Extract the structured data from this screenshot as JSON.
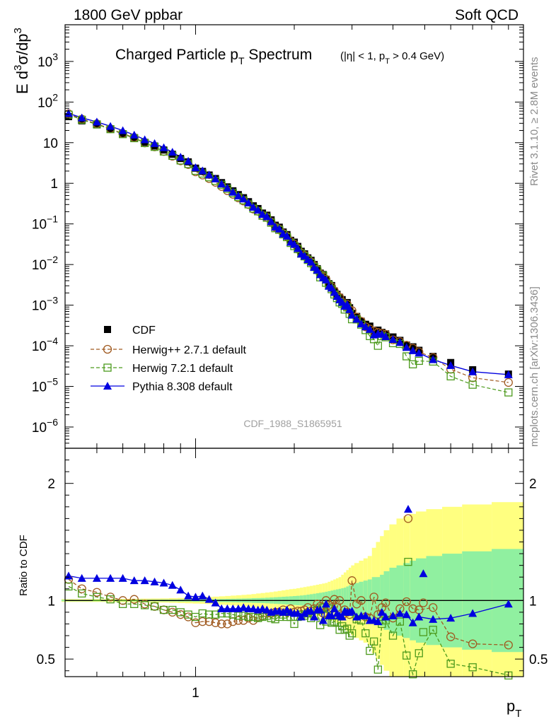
{
  "header": {
    "left": "1800 GeV ppbar",
    "right": "Soft QCD"
  },
  "side_labels": {
    "rivet": "Rivet 3.1.10, ≥ 2.8M events",
    "mcplots": "mcplots.cern.ch [arXiv:1306.3436]"
  },
  "chart_data": [
    {
      "type": "scatter",
      "panel": "main",
      "title": "Charged Particle pT Spectrum",
      "title_parts": {
        "main": "Charged Particle p",
        "sub": "T",
        "after": " Spectrum"
      },
      "subtitle": "(|η| < 1, pT > 0.4 GeV)",
      "subtitle_parts": {
        "a": "(|η| < 1, p",
        "sub": "T",
        "b": " > 0.4 GeV)"
      },
      "ylabel": "E d³σ/dp³",
      "xlabel": "pT",
      "xscale": "log",
      "yscale": "log",
      "xlim": [
        0.4,
        10
      ],
      "ylim": [
        3e-07,
        8000
      ],
      "x_tick_labels": [
        {
          "value": 1,
          "label": "1"
        }
      ],
      "y_tick_labels": [
        {
          "value": 1e-06,
          "base": "10",
          "exp": "−6"
        },
        {
          "value": 1e-05,
          "base": "10",
          "exp": "−5"
        },
        {
          "value": 0.0001,
          "base": "10",
          "exp": "−4"
        },
        {
          "value": 0.001,
          "base": "10",
          "exp": "−3"
        },
        {
          "value": 0.01,
          "base": "10",
          "exp": "−2"
        },
        {
          "value": 0.1,
          "base": "10",
          "exp": "−1"
        },
        {
          "value": 1,
          "base": "1",
          "exp": ""
        },
        {
          "value": 10,
          "base": "10",
          "exp": ""
        },
        {
          "value": 100,
          "base": "10",
          "exp": "2"
        },
        {
          "value": 1000,
          "base": "10",
          "exp": "3"
        }
      ],
      "legend_position": "bottom-left",
      "watermark": "CDF_1988_S1865951",
      "x": [
        0.41,
        0.45,
        0.5,
        0.55,
        0.6,
        0.65,
        0.7,
        0.75,
        0.8,
        0.85,
        0.9,
        0.95,
        1.0,
        1.05,
        1.1,
        1.15,
        1.2,
        1.25,
        1.3,
        1.35,
        1.4,
        1.45,
        1.5,
        1.55,
        1.6,
        1.65,
        1.7,
        1.75,
        1.8,
        1.85,
        1.9,
        1.95,
        2.0,
        2.05,
        2.1,
        2.15,
        2.2,
        2.25,
        2.3,
        2.35,
        2.4,
        2.45,
        2.5,
        2.55,
        2.6,
        2.65,
        2.7,
        2.75,
        2.8,
        2.85,
        2.9,
        2.95,
        3.0,
        3.1,
        3.2,
        3.3,
        3.4,
        3.5,
        3.6,
        3.7,
        3.8,
        4.0,
        4.2,
        4.4,
        4.6,
        4.8,
        5.3,
        6.0,
        7.0,
        9.0
      ],
      "series": [
        {
          "name": "CDF",
          "style": "data",
          "color": "#000000",
          "values": [
            43.7,
            34.5,
            27.4,
            21.3,
            16.7,
            13.3,
            10.2,
            8.27,
            6.59,
            5.18,
            4.07,
            3.37,
            2.36,
            1.96,
            1.6,
            1.31,
            1.04,
            0.817,
            0.654,
            0.527,
            0.442,
            0.353,
            0.279,
            0.239,
            0.185,
            0.164,
            0.126,
            0.0929,
            0.0831,
            0.0632,
            0.0546,
            0.0395,
            0.0356,
            0.0279,
            0.0212,
            0.0183,
            0.0146,
            0.0127,
            0.01,
            0.00793,
            0.00614,
            0.00567,
            0.00432,
            0.00338,
            0.00304,
            0.00223,
            0.00185,
            0.00156,
            0.00137,
            0.00104,
            0.00116,
            0.000864,
            0.000628,
            0.000527,
            0.000401,
            0.000338,
            0.000305,
            0.000224,
            0.000243,
            0.000214,
            0.000196,
            0.000165,
            0.000136,
            0.000104,
            9.43e-05,
            7.74e-05,
            5.47e-05,
            3.87e-05,
            2.57e-05,
            2.01e-05
          ]
        },
        {
          "name": "Herwig++ 2.7.1 default",
          "style": "circle-dashed",
          "color": "#a05a20",
          "values": [
            51.5,
            37.9,
            29.3,
            22.0,
            16.7,
            13.4,
            9.87,
            7.89,
            6.09,
            4.66,
            3.58,
            2.9,
            1.92,
            1.6,
            1.31,
            1.06,
            0.837,
            0.658,
            0.536,
            0.437,
            0.367,
            0.3,
            0.233,
            0.206,
            0.161,
            0.146,
            0.112,
            0.0832,
            0.0747,
            0.0583,
            0.0494,
            0.0369,
            0.0319,
            0.0254,
            0.0193,
            0.0169,
            0.0137,
            0.0116,
            0.0093,
            0.00768,
            0.00584,
            0.00505,
            0.00433,
            0.00323,
            0.00285,
            0.00225,
            0.00174,
            0.00156,
            0.00119,
            0.000958,
            0.00105,
            0.000763,
            0.000735,
            0.000509,
            0.000401,
            0.000292,
            0.000259,
            0.000231,
            0.000213,
            0.000202,
            0.000192,
            0.00014,
            0.000126,
            0.000103,
            8.72e-05,
            7.1e-05,
            5.14e-05,
            2.65e-05,
            1.63e-05,
            1.25e-05
          ]
        },
        {
          "name": "Herwig 7.2.1 default",
          "style": "square-dashed",
          "color": "#4c9a1c",
          "values": [
            48.9,
            36.6,
            28.2,
            21.5,
            16.2,
            12.9,
            9.82,
            7.89,
            6.05,
            4.75,
            3.65,
            2.98,
            2.03,
            1.74,
            1.41,
            1.15,
            0.921,
            0.729,
            0.578,
            0.459,
            0.383,
            0.303,
            0.239,
            0.204,
            0.159,
            0.142,
            0.107,
            0.0784,
            0.0713,
            0.0553,
            0.0472,
            0.034,
            0.0284,
            0.0239,
            0.0186,
            0.0159,
            0.013,
            0.0108,
            0.0087,
            0.00732,
            0.00483,
            0.00535,
            0.00355,
            0.00315,
            0.00247,
            0.00183,
            0.00149,
            0.00117,
            0.00107,
            0.00078,
            0.000877,
            0.000609,
            0.00045,
            0.000445,
            0.000331,
            0.000243,
            0.000173,
            0.000145,
            0.0001,
            0.000172,
            0.000162,
            0.000116,
            0.000111,
            5.5e-05,
            3.5e-05,
            4.25e-05,
            4.09e-05,
            1.77e-05,
            1.1e-05,
            7.1e-06
          ]
        },
        {
          "name": "Pythia 8.308 default",
          "style": "triangle-solid",
          "color": "#0000e0",
          "values": [
            52.7,
            40.9,
            32.5,
            25.3,
            19.9,
            15.5,
            11.9,
            9.57,
            7.56,
            5.85,
            4.43,
            3.52,
            2.44,
            2.04,
            1.62,
            1.29,
            0.965,
            0.761,
            0.609,
            0.492,
            0.414,
            0.33,
            0.259,
            0.219,
            0.172,
            0.151,
            0.114,
            0.0841,
            0.0753,
            0.0569,
            0.0502,
            0.0356,
            0.0316,
            0.0249,
            0.0182,
            0.0162,
            0.0133,
            0.0116,
            0.00859,
            0.00731,
            0.00565,
            0.00471,
            0.00419,
            0.00293,
            0.00265,
            0.00208,
            0.00165,
            0.00136,
            0.00118,
            0.000944,
            0.00104,
            0.000781,
            0.000571,
            0.000452,
            0.000347,
            0.000294,
            0.000254,
            0.000186,
            0.000199,
            0.000192,
            0.000169,
            0.000144,
            0.000121,
            9.18e-05,
            7.61e-05,
            6.65e-05,
            4.58e-05,
            3.28e-05,
            2.3e-05,
            1.95e-05
          ]
        }
      ]
    },
    {
      "type": "line",
      "panel": "ratio",
      "ylabel": "Ratio to CDF",
      "xlabel": "pT",
      "xlabel_parts": {
        "main": "p",
        "sub": "T"
      },
      "yscale": "linear",
      "ylim": [
        0.35,
        2.3
      ],
      "y_tick_labels": [
        "0.5",
        "1",
        "2"
      ],
      "y_ticks": [
        0.5,
        1,
        2
      ],
      "x_tick_labels": [
        "1"
      ],
      "reference_line": 1,
      "band_edges": [
        0.39,
        0.43,
        0.47,
        0.53,
        0.58,
        0.63,
        0.68,
        0.73,
        0.78,
        0.83,
        0.88,
        0.93,
        0.98,
        1.03,
        1.08,
        1.13,
        1.18,
        1.23,
        1.28,
        1.33,
        1.38,
        1.43,
        1.48,
        1.53,
        1.58,
        1.63,
        1.68,
        1.73,
        1.78,
        1.83,
        1.88,
        1.93,
        1.98,
        2.03,
        2.08,
        2.13,
        2.18,
        2.23,
        2.28,
        2.33,
        2.38,
        2.43,
        2.48,
        2.53,
        2.58,
        2.63,
        2.68,
        2.73,
        2.78,
        2.83,
        2.88,
        2.93,
        2.98,
        3.05,
        3.15,
        3.25,
        3.35,
        3.45,
        3.55,
        3.65,
        3.75,
        3.9,
        4.1,
        4.3,
        4.5,
        4.7,
        5.05,
        5.65,
        6.5,
        8.0,
        10.0
      ],
      "stat_band_halfwidth": [
        0.006,
        0.006,
        0.006,
        0.006,
        0.006,
        0.007,
        0.007,
        0.007,
        0.008,
        0.008,
        0.009,
        0.009,
        0.01,
        0.01,
        0.011,
        0.012,
        0.013,
        0.014,
        0.015,
        0.016,
        0.017,
        0.018,
        0.02,
        0.021,
        0.022,
        0.024,
        0.026,
        0.028,
        0.03,
        0.032,
        0.034,
        0.036,
        0.038,
        0.04,
        0.043,
        0.046,
        0.05,
        0.054,
        0.058,
        0.062,
        0.066,
        0.07,
        0.075,
        0.08,
        0.085,
        0.09,
        0.095,
        0.1,
        0.105,
        0.11,
        0.12,
        0.13,
        0.14,
        0.15,
        0.16,
        0.17,
        0.18,
        0.2,
        0.2,
        0.22,
        0.25,
        0.28,
        0.3,
        0.32,
        0.34,
        0.36,
        0.38,
        0.4,
        0.42,
        0.44
      ],
      "total_band_halfwidth": [
        0.012,
        0.012,
        0.012,
        0.013,
        0.014,
        0.015,
        0.016,
        0.017,
        0.018,
        0.02,
        0.022,
        0.024,
        0.026,
        0.028,
        0.03,
        0.033,
        0.036,
        0.039,
        0.042,
        0.045,
        0.048,
        0.051,
        0.055,
        0.06,
        0.064,
        0.068,
        0.072,
        0.077,
        0.082,
        0.087,
        0.092,
        0.097,
        0.1,
        0.105,
        0.11,
        0.115,
        0.12,
        0.125,
        0.13,
        0.135,
        0.14,
        0.145,
        0.15,
        0.16,
        0.17,
        0.18,
        0.19,
        0.2,
        0.22,
        0.24,
        0.26,
        0.28,
        0.3,
        0.32,
        0.34,
        0.36,
        0.38,
        0.45,
        0.5,
        0.55,
        0.6,
        0.65,
        0.7,
        0.72,
        0.74,
        0.76,
        0.78,
        0.8,
        0.82,
        0.84
      ],
      "series": [
        {
          "name": "Herwig++ 2.7.1 default",
          "color": "#a05a20",
          "values": [
            1.18,
            1.1,
            1.07,
            1.03,
            1.0,
            1.01,
            0.97,
            0.95,
            0.92,
            0.9,
            0.88,
            0.86,
            0.81,
            0.82,
            0.82,
            0.81,
            0.8,
            0.8,
            0.82,
            0.83,
            0.83,
            0.85,
            0.83,
            0.86,
            0.87,
            0.89,
            0.89,
            0.9,
            0.9,
            0.92,
            0.9,
            0.93,
            0.9,
            0.91,
            0.91,
            0.92,
            0.94,
            0.91,
            0.93,
            0.97,
            0.95,
            0.89,
            1.0,
            0.96,
            0.94,
            1.01,
            0.94,
            1.0,
            0.87,
            0.92,
            0.9,
            0.88,
            1.17,
            0.97,
            1.0,
            0.86,
            0.85,
            1.03,
            0.88,
            0.94,
            0.98,
            0.85,
            0.93,
            0.99,
            0.93,
            0.92,
            0.94,
            0.69,
            0.63,
            0.62
          ]
        },
        {
          "name": "Herwig 7.2.1 default",
          "color": "#4c9a1c",
          "values": [
            1.12,
            1.06,
            1.03,
            1.01,
            0.97,
            0.97,
            0.96,
            0.95,
            0.92,
            0.92,
            0.9,
            0.88,
            0.86,
            0.89,
            0.88,
            0.88,
            0.89,
            0.89,
            0.88,
            0.87,
            0.87,
            0.86,
            0.86,
            0.85,
            0.86,
            0.87,
            0.85,
            0.84,
            0.86,
            0.88,
            0.86,
            0.86,
            0.8,
            0.86,
            0.88,
            0.87,
            0.89,
            0.85,
            0.87,
            0.92,
            0.79,
            0.94,
            0.82,
            0.93,
            0.81,
            0.82,
            0.81,
            0.75,
            0.78,
            0.75,
            0.76,
            0.7,
            0.72,
            0.84,
            0.83,
            0.72,
            0.57,
            0.65,
            0.41,
            0.8,
            0.83,
            0.7,
            0.82,
            0.53,
            0.37,
            0.55,
            0.75,
            0.46,
            0.43,
            0.36
          ]
        },
        {
          "name": "Pythia 8.308 default",
          "color": "#0000e0",
          "values": [
            1.21,
            1.19,
            1.19,
            1.19,
            1.19,
            1.17,
            1.17,
            1.16,
            1.15,
            1.13,
            1.09,
            1.04,
            1.03,
            1.04,
            1.01,
            0.98,
            0.93,
            0.93,
            0.93,
            0.93,
            0.94,
            0.93,
            0.93,
            0.92,
            0.93,
            0.92,
            0.9,
            0.91,
            0.91,
            0.9,
            0.92,
            0.9,
            0.89,
            0.89,
            0.86,
            0.89,
            0.91,
            0.91,
            0.86,
            0.92,
            0.92,
            0.83,
            0.97,
            0.87,
            0.87,
            0.93,
            0.89,
            0.87,
            0.86,
            0.91,
            0.9,
            0.9,
            0.91,
            0.86,
            0.87,
            0.87,
            0.83,
            0.83,
            0.82,
            0.9,
            0.86,
            0.87,
            0.89,
            0.88,
            0.81,
            0.86,
            0.84,
            0.85,
            0.89,
            0.97
          ]
        },
        {
          "name": "Herwig++ points",
          "color": "#a05a20",
          "values": []
        }
      ],
      "highlight_points": [
        {
          "series": "Pythia 8.308 default",
          "x": 4.45,
          "y": 1.78
        },
        {
          "series": "Herwig++ 2.7.1 default",
          "x": 4.45,
          "y": 1.7
        },
        {
          "series": "Herwig 7.2.1 default",
          "x": 4.45,
          "y": 1.33
        },
        {
          "series": "Pythia 8.308 default",
          "x": 4.95,
          "y": 1.23
        },
        {
          "series": "Herwig++ 2.7.1 default",
          "x": 4.95,
          "y": 0.98
        },
        {
          "series": "Herwig 7.2.1 default",
          "x": 4.95,
          "y": 0.73
        }
      ]
    }
  ]
}
